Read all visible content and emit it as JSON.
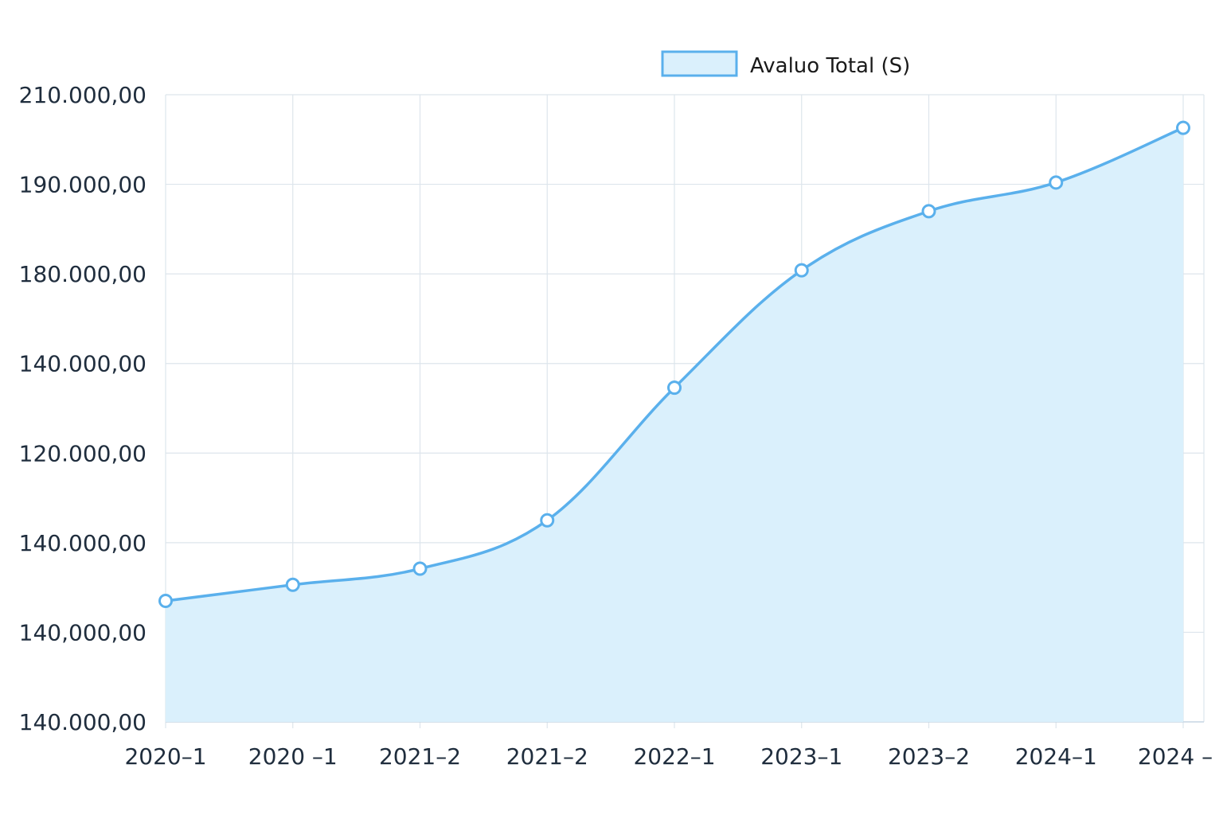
{
  "chart_data": {
    "type": "area",
    "title": "",
    "xlabel": "",
    "ylabel": "",
    "categories": [
      "2020–1",
      "2020 –1",
      "2021–2",
      "2021–2",
      "2022–1",
      "2023–1",
      "2023–2",
      "2024–1",
      "2024 –"
    ],
    "y_tick_labels": [
      "210.000,00",
      "190.000,00",
      "180.000,00",
      "140.000,00",
      "120.000,00",
      "140.000,00",
      "140,000,00",
      "140.000,00"
    ],
    "series": [
      {
        "name": "Avaluo Total (S)",
        "values": [
          141500,
          143300,
          145100,
          150500,
          165300,
          178400,
          185000,
          188200,
          194300
        ]
      }
    ],
    "ylim": [
      128000,
      198000
    ],
    "grid": true,
    "legend_position": "top-center",
    "colors": {
      "line": "#5ab0ec",
      "fill": "#daf0fc",
      "grid": "#dde5ec",
      "marker_fill": "#ffffff"
    }
  }
}
